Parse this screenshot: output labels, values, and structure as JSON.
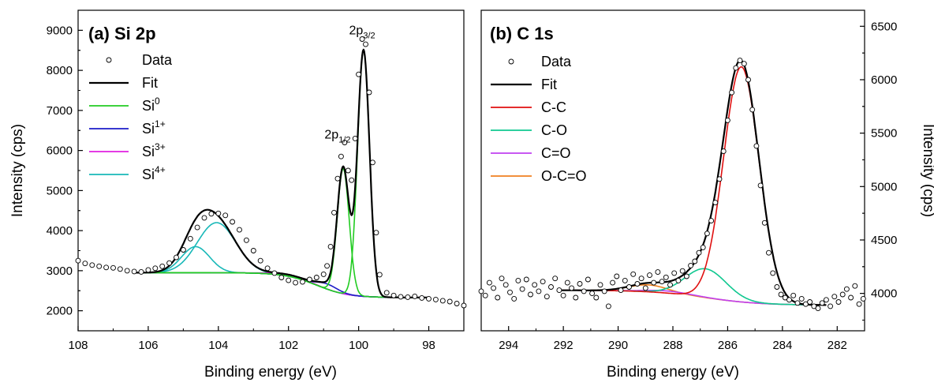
{
  "chart_data": [
    {
      "type": "line",
      "panel_label": "(a) Si 2p",
      "xlabel": "Binding energy (eV)",
      "ylabel": "Intensity (cps)",
      "xlim": [
        108,
        97
      ],
      "ylim": [
        1500,
        9500
      ],
      "x_ticks": [
        108,
        106,
        104,
        102,
        100,
        98
      ],
      "y_ticks": [
        2000,
        3000,
        4000,
        5000,
        6000,
        7000,
        8000,
        9000
      ],
      "legend_position": "top-left",
      "grid": false,
      "colors": {
        "data": "#000000",
        "fit": "#000000",
        "si0": "#22cc22",
        "si1": "#1c1cc8",
        "si3": "#e020e0",
        "si4": "#18b8b8"
      },
      "legend": [
        {
          "label": "Data",
          "kind": "marker"
        },
        {
          "label": "Fit",
          "kind": "line"
        },
        {
          "label": "Si",
          "sup": "0",
          "kind": "line"
        },
        {
          "label": "Si",
          "sup": "1+",
          "kind": "line"
        },
        {
          "label": "Si",
          "sup": "3+",
          "kind": "line"
        },
        {
          "label": "Si",
          "sup": "4+",
          "kind": "line"
        }
      ],
      "peak_labels": [
        {
          "base": "2p",
          "sub": "3/2",
          "x": 99.9,
          "y": 8900
        },
        {
          "base": "2p",
          "sub": "1/2",
          "x": 100.6,
          "y": 6300
        }
      ],
      "data_points": [
        [
          108,
          3250
        ],
        [
          107.8,
          3180
        ],
        [
          107.6,
          3140
        ],
        [
          107.4,
          3110
        ],
        [
          107.2,
          3080
        ],
        [
          107,
          3070
        ],
        [
          106.8,
          3040
        ],
        [
          106.6,
          3000
        ],
        [
          106.4,
          2980
        ],
        [
          106.2,
          2970
        ],
        [
          106,
          3020
        ],
        [
          105.8,
          3060
        ],
        [
          105.6,
          3110
        ],
        [
          105.4,
          3190
        ],
        [
          105.2,
          3330
        ],
        [
          105,
          3520
        ],
        [
          104.8,
          3800
        ],
        [
          104.6,
          4080
        ],
        [
          104.4,
          4320
        ],
        [
          104.2,
          4420
        ],
        [
          104,
          4430
        ],
        [
          103.8,
          4380
        ],
        [
          103.6,
          4220
        ],
        [
          103.4,
          4020
        ],
        [
          103.2,
          3760
        ],
        [
          103,
          3500
        ],
        [
          102.8,
          3250
        ],
        [
          102.6,
          3060
        ],
        [
          102.4,
          2940
        ],
        [
          102.2,
          2830
        ],
        [
          102,
          2760
        ],
        [
          101.8,
          2700
        ],
        [
          101.6,
          2720
        ],
        [
          101.4,
          2780
        ],
        [
          101.2,
          2830
        ],
        [
          101,
          2910
        ],
        [
          100.9,
          3120
        ],
        [
          100.8,
          3600
        ],
        [
          100.7,
          4450
        ],
        [
          100.6,
          5300
        ],
        [
          100.5,
          5850
        ],
        [
          100.4,
          6200
        ],
        [
          100.3,
          5500
        ],
        [
          100.2,
          5260
        ],
        [
          100.1,
          6300
        ],
        [
          100,
          7900
        ],
        [
          99.9,
          8780
        ],
        [
          99.8,
          8650
        ],
        [
          99.7,
          7450
        ],
        [
          99.6,
          5700
        ],
        [
          99.5,
          3950
        ],
        [
          99.4,
          2900
        ],
        [
          99.2,
          2450
        ],
        [
          99,
          2380
        ],
        [
          98.8,
          2350
        ],
        [
          98.6,
          2340
        ],
        [
          98.4,
          2360
        ],
        [
          98.2,
          2320
        ],
        [
          98,
          2300
        ],
        [
          97.8,
          2280
        ],
        [
          97.6,
          2250
        ],
        [
          97.4,
          2230
        ],
        [
          97.2,
          2180
        ],
        [
          97,
          2130
        ]
      ],
      "fit": {
        "x_range": [
          106.4,
          98
        ],
        "baseline": {
          "left": 2950,
          "right": 2330,
          "center": 101.2,
          "width": 0.45
        },
        "components": [
          {
            "name": "Si0 2p3/2",
            "center": 99.86,
            "height": 6150,
            "sigma": 0.17
          },
          {
            "name": "Si0 2p1/2",
            "center": 100.44,
            "height": 3120,
            "sigma": 0.17
          },
          {
            "name": "Si1+",
            "center": 100.9,
            "height": 130,
            "sigma": 0.3
          },
          {
            "name": "Si3+",
            "center": 102,
            "height": 40,
            "sigma": 0.5
          },
          {
            "name": "Si4+ a",
            "center": 104.05,
            "height": 1250,
            "sigma": 0.55
          },
          {
            "name": "Si4+ b",
            "center": 104.65,
            "height": 650,
            "sigma": 0.4
          }
        ]
      }
    },
    {
      "type": "line",
      "panel_label": "(b) C 1s",
      "xlabel": "Binding energy (eV)",
      "ylabel": "Intensity (cps)",
      "xlim": [
        295,
        281
      ],
      "ylim": [
        3650,
        6650
      ],
      "x_ticks": [
        294,
        292,
        290,
        288,
        286,
        284,
        282
      ],
      "y_ticks": [
        4000,
        4500,
        5000,
        5500,
        6000,
        6500
      ],
      "y_axis_side": "right",
      "legend_position": "top-left",
      "grid": false,
      "colors": {
        "data": "#000000",
        "fit": "#000000",
        "cc": "#e01010",
        "co": "#10c890",
        "c_eq_o": "#c040f0",
        "occo": "#f08020"
      },
      "legend": [
        {
          "label": "Data",
          "kind": "marker"
        },
        {
          "label": "Fit",
          "kind": "line"
        },
        {
          "label": "C-C",
          "kind": "line"
        },
        {
          "label": "C-O",
          "kind": "line"
        },
        {
          "label": "C=O",
          "kind": "line"
        },
        {
          "label": "O-C=O",
          "kind": "line"
        }
      ],
      "data_points": [
        [
          295,
          4020
        ],
        [
          294.85,
          3980
        ],
        [
          294.7,
          4100
        ],
        [
          294.55,
          4050
        ],
        [
          294.4,
          3960
        ],
        [
          294.25,
          4140
        ],
        [
          294.1,
          4080
        ],
        [
          293.95,
          4010
        ],
        [
          293.8,
          3950
        ],
        [
          293.65,
          4120
        ],
        [
          293.5,
          4040
        ],
        [
          293.35,
          4130
        ],
        [
          293.2,
          3990
        ],
        [
          293.05,
          4080
        ],
        [
          292.9,
          4020
        ],
        [
          292.75,
          4110
        ],
        [
          292.6,
          3970
        ],
        [
          292.45,
          4060
        ],
        [
          292.3,
          4140
        ],
        [
          292.15,
          4030
        ],
        [
          292,
          3980
        ],
        [
          291.85,
          4100
        ],
        [
          291.7,
          4050
        ],
        [
          291.55,
          3960
        ],
        [
          291.4,
          4090
        ],
        [
          291.25,
          4020
        ],
        [
          291.1,
          4130
        ],
        [
          290.95,
          4000
        ],
        [
          290.8,
          3960
        ],
        [
          290.65,
          4080
        ],
        [
          290.5,
          4020
        ],
        [
          290.35,
          3880
        ],
        [
          290.2,
          4100
        ],
        [
          290.05,
          4160
        ],
        [
          289.9,
          4030
        ],
        [
          289.75,
          4120
        ],
        [
          289.6,
          4060
        ],
        [
          289.45,
          4180
        ],
        [
          289.3,
          4090
        ],
        [
          289.15,
          4140
        ],
        [
          289,
          4050
        ],
        [
          288.85,
          4170
        ],
        [
          288.7,
          4100
        ],
        [
          288.55,
          4200
        ],
        [
          288.4,
          4110
        ],
        [
          288.25,
          4150
        ],
        [
          288.1,
          4080
        ],
        [
          287.95,
          4190
        ],
        [
          287.8,
          4120
        ],
        [
          287.65,
          4210
        ],
        [
          287.5,
          4160
        ],
        [
          287.35,
          4260
        ],
        [
          287.2,
          4300
        ],
        [
          287.05,
          4380
        ],
        [
          286.9,
          4430
        ],
        [
          286.75,
          4560
        ],
        [
          286.6,
          4680
        ],
        [
          286.45,
          4850
        ],
        [
          286.3,
          5070
        ],
        [
          286.15,
          5330
        ],
        [
          286,
          5620
        ],
        [
          285.85,
          5880
        ],
        [
          285.7,
          6110
        ],
        [
          285.55,
          6180
        ],
        [
          285.4,
          6150
        ],
        [
          285.25,
          6000
        ],
        [
          285.1,
          5720
        ],
        [
          284.95,
          5380
        ],
        [
          284.8,
          5010
        ],
        [
          284.65,
          4660
        ],
        [
          284.5,
          4380
        ],
        [
          284.35,
          4190
        ],
        [
          284.2,
          4060
        ],
        [
          284.05,
          3990
        ],
        [
          283.9,
          3960
        ],
        [
          283.75,
          3940
        ],
        [
          283.6,
          3980
        ],
        [
          283.45,
          3910
        ],
        [
          283.3,
          3950
        ],
        [
          283.15,
          3900
        ],
        [
          283,
          3920
        ],
        [
          282.85,
          3880
        ],
        [
          282.7,
          3860
        ],
        [
          282.55,
          3910
        ],
        [
          282.4,
          3940
        ],
        [
          282.25,
          3880
        ],
        [
          282.1,
          3970
        ],
        [
          281.95,
          3920
        ],
        [
          281.8,
          3990
        ],
        [
          281.65,
          4040
        ],
        [
          281.5,
          3960
        ],
        [
          281.35,
          4070
        ],
        [
          281.2,
          3900
        ],
        [
          281.05,
          3950
        ]
      ],
      "fit": {
        "x_range": [
          292.2,
          282.4
        ],
        "baseline": {
          "left": 4030,
          "right": 3890,
          "center": 286.8,
          "width": 1.0
        },
        "components": [
          {
            "name": "C-C",
            "center": 285.5,
            "height": 2200,
            "sigma": 0.65
          },
          {
            "name": "C-O",
            "center": 286.8,
            "height": 270,
            "sigma": 0.75
          },
          {
            "name": "C=O",
            "center": 288.2,
            "height": 20,
            "sigma": 0.8
          },
          {
            "name": "O-C=O",
            "center": 288.9,
            "height": 65,
            "sigma": 0.7
          }
        ]
      }
    }
  ]
}
